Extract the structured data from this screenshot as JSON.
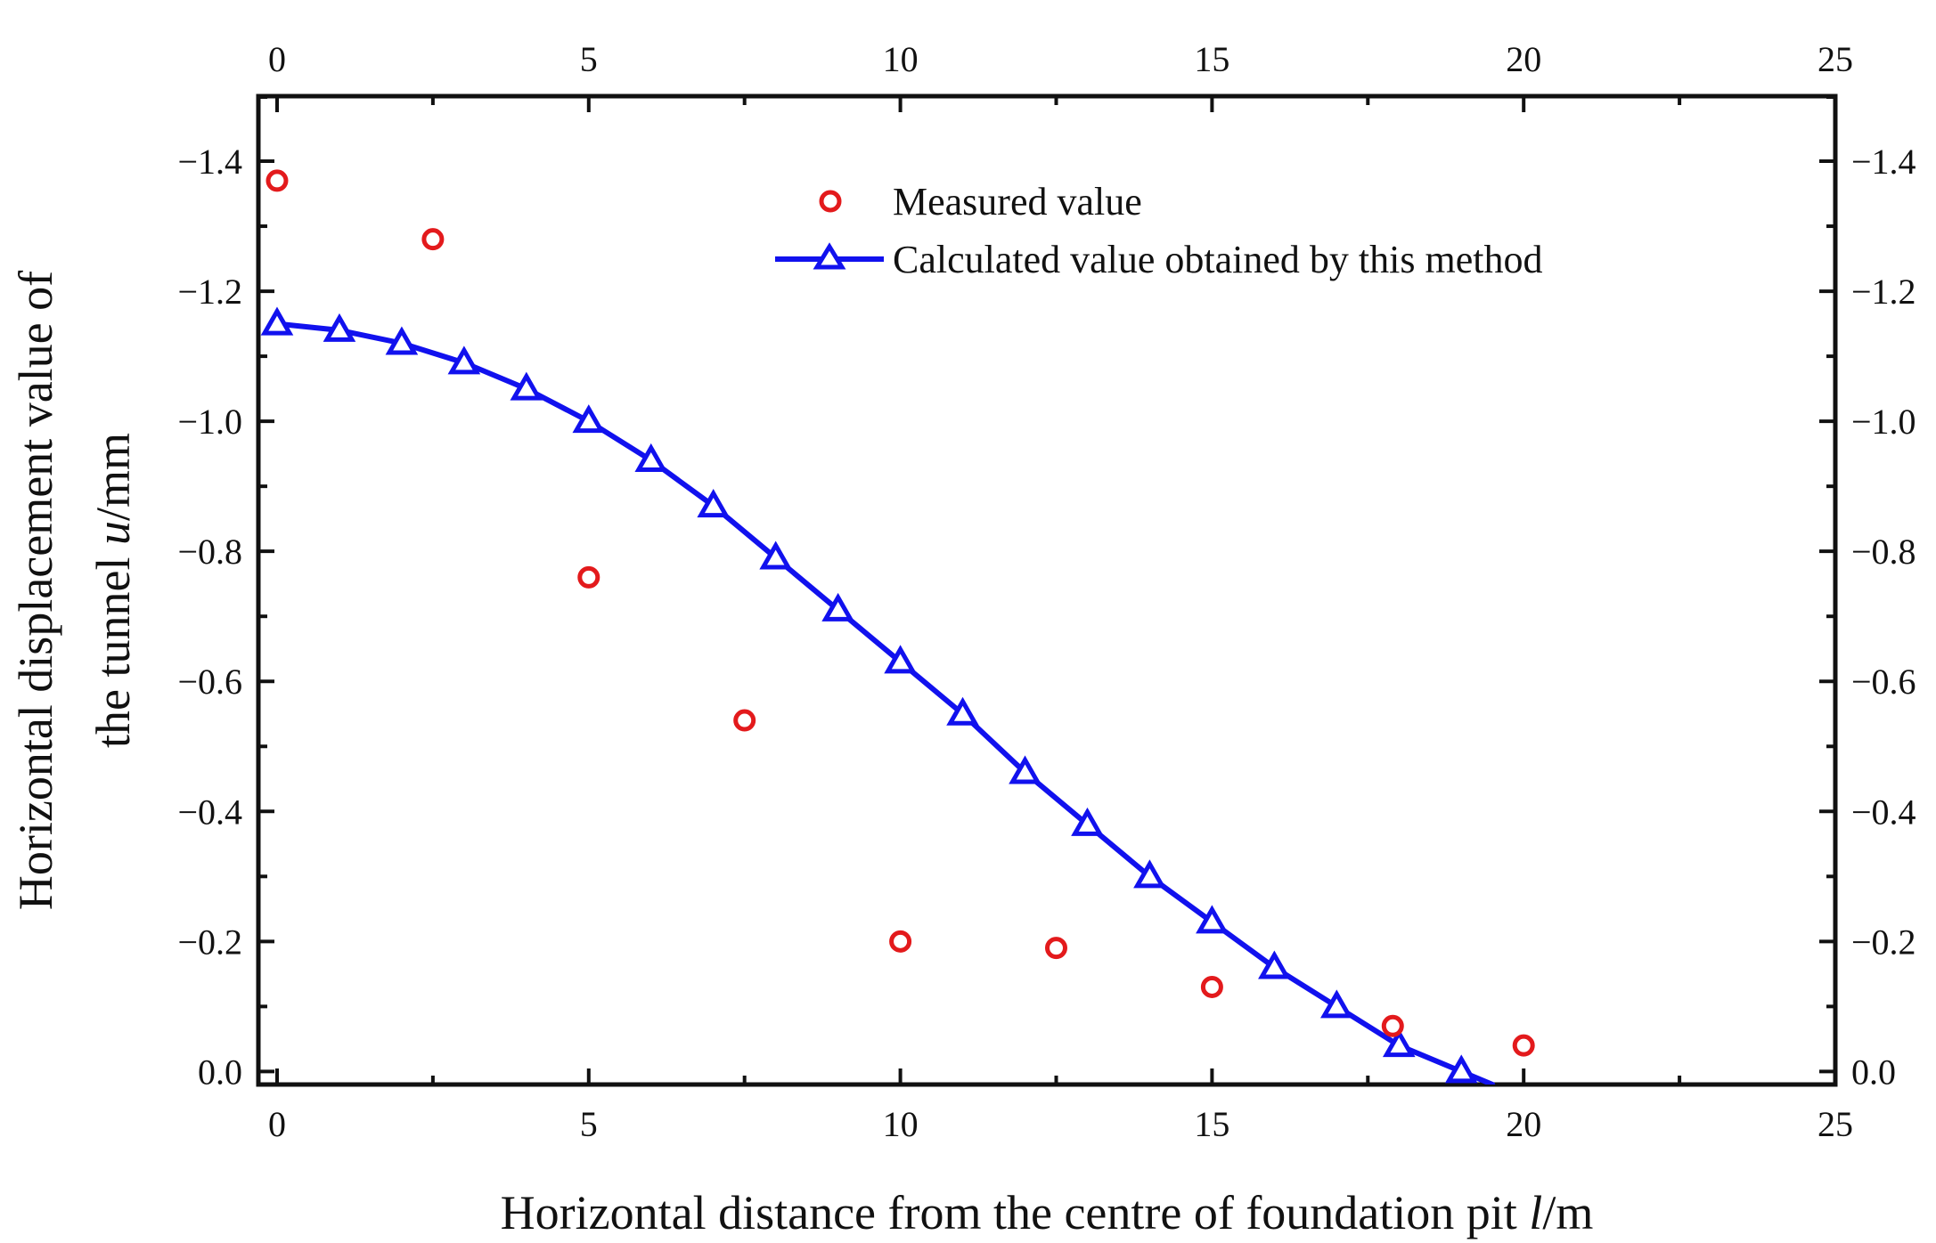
{
  "chart_data": {
    "type": "scatter",
    "title": "",
    "xlabel": "Horizontal distance from the centre of foundation pit l/m",
    "ylabel_line1": "Horizontal displacement value of",
    "ylabel_line2": "the tunnel u/mm",
    "xlim": [
      -0.3,
      25
    ],
    "ylim": [
      0.02,
      -1.5
    ],
    "x_ticks": [
      0,
      5,
      10,
      15,
      20,
      25
    ],
    "x_tick_labels": [
      "0",
      "5",
      "10",
      "15",
      "20",
      "25"
    ],
    "y_ticks": [
      0.0,
      -0.2,
      -0.4,
      -0.6,
      -0.8,
      -1.0,
      -1.2,
      -1.4
    ],
    "y_tick_labels": [
      "0.0",
      "−0.2",
      "−0.4",
      "−0.6",
      "−0.8",
      "−1.0",
      "−1.2",
      "−1.4"
    ],
    "grid": false,
    "legend_position": "top-center",
    "series": [
      {
        "name": "Measured value",
        "kind": "scatter",
        "marker": "circle",
        "color": "#e31a1c",
        "x": [
          0,
          2.5,
          5,
          7.5,
          10,
          12.5,
          15,
          17.9,
          20
        ],
        "y": [
          -1.37,
          -1.28,
          -0.76,
          -0.54,
          -0.2,
          -0.19,
          -0.13,
          -0.07,
          -0.04
        ]
      },
      {
        "name": "Calculated value obtained by this method",
        "kind": "line",
        "marker": "triangle",
        "color": "#1111ee",
        "x": [
          0,
          1,
          2,
          3,
          4,
          5,
          6,
          7,
          8,
          9,
          10,
          11,
          12,
          13,
          14,
          15,
          16,
          17,
          18,
          19
        ],
        "y": [
          -1.15,
          -1.14,
          -1.12,
          -1.09,
          -1.05,
          -1.0,
          -0.94,
          -0.87,
          -0.79,
          -0.71,
          -0.63,
          -0.55,
          -0.46,
          -0.38,
          -0.3,
          -0.23,
          -0.16,
          -0.1,
          -0.04,
          0.0
        ],
        "line_x": [
          0,
          1,
          2,
          3,
          4,
          5,
          6,
          7,
          8,
          9,
          10,
          11,
          12,
          13,
          14,
          15,
          16,
          17,
          18,
          19,
          19.5
        ],
        "line_y": [
          -1.15,
          -1.14,
          -1.12,
          -1.09,
          -1.05,
          -1.0,
          -0.94,
          -0.87,
          -0.79,
          -0.71,
          -0.63,
          -0.55,
          -0.46,
          -0.38,
          -0.3,
          -0.23,
          -0.16,
          -0.1,
          -0.04,
          0.0,
          0.02
        ]
      }
    ]
  }
}
